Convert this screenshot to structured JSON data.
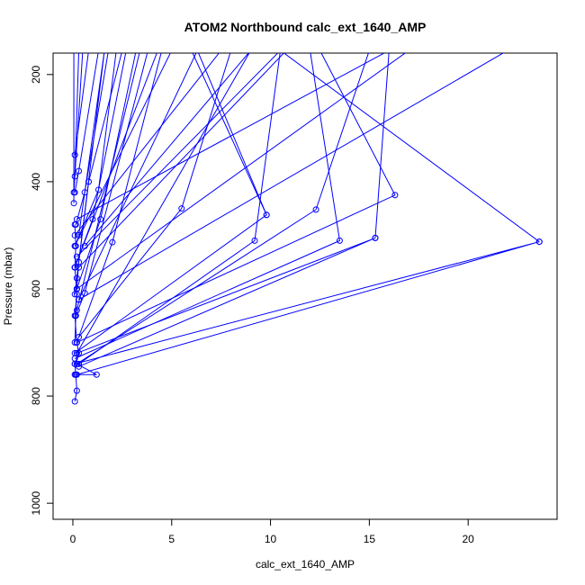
{
  "chart_data": {
    "type": "line",
    "title": "ATOM2 Northbound calc_ext_1640_AMP",
    "xlabel": "calc_ext_1640_AMP",
    "ylabel": "Pressure (mbar)",
    "xlim": [
      -1,
      24.5
    ],
    "ylim": [
      1030,
      160
    ],
    "y_reversed": true,
    "x_ticks": [
      0,
      5,
      10,
      15,
      20
    ],
    "y_ticks": [
      200,
      400,
      600,
      800,
      1000
    ],
    "grid": false,
    "series_color": "#0000ff",
    "series": [
      {
        "x": [
          0.1,
          0.2,
          0.15,
          0.1,
          0.3,
          0.2,
          0.1,
          0.2,
          0.1,
          0.15,
          0.1
        ],
        "y": [
          810,
          790,
          760,
          740,
          720,
          700,
          650,
          610,
          560,
          520,
          480
        ]
      },
      {
        "x": [
          0.1,
          0.15,
          0.2,
          0.3
        ],
        "y": [
          700,
          650,
          600,
          550
        ]
      },
      {
        "x": [
          0.2,
          23.6,
          0.1
        ],
        "y": [
          760,
          512,
          740
        ]
      },
      {
        "x": [
          0.3,
          15.3,
          0.2
        ],
        "y": [
          745,
          505,
          720
        ]
      },
      {
        "x": [
          0.1,
          13.5,
          12.0
        ],
        "y": [
          730,
          510,
          155
        ]
      },
      {
        "x": [
          0.2,
          16.3,
          12.5
        ],
        "y": [
          700,
          425,
          155
        ]
      },
      {
        "x": [
          0.3,
          9.2,
          10.5
        ],
        "y": [
          740,
          510,
          155
        ]
      },
      {
        "x": [
          0.1,
          9.8,
          6.0
        ],
        "y": [
          720,
          462,
          155
        ]
      },
      {
        "x": [
          0.2,
          12.3,
          15.0
        ],
        "y": [
          740,
          452,
          155
        ]
      },
      {
        "x": [
          0.3,
          5.5,
          8.0
        ],
        "y": [
          690,
          450,
          155
        ]
      },
      {
        "x": [
          0.2,
          2.0,
          4.5
        ],
        "y": [
          700,
          513,
          155
        ]
      },
      {
        "x": [
          0.1,
          1.2,
          0.2
        ],
        "y": [
          760,
          760,
          740
        ]
      },
      {
        "x": [
          0.15,
          0.6,
          3.8
        ],
        "y": [
          650,
          608,
          155
        ]
      },
      {
        "x": [
          0.2,
          1.4,
          3.2
        ],
        "y": [
          600,
          470,
          155
        ]
      },
      {
        "x": [
          0.1,
          1.0,
          2.7
        ],
        "y": [
          560,
          470,
          155
        ]
      },
      {
        "x": [
          0.2,
          0.8,
          2.5
        ],
        "y": [
          580,
          400,
          155
        ]
      },
      {
        "x": [
          0.1,
          1.3,
          2.2
        ],
        "y": [
          520,
          415,
          155
        ]
      },
      {
        "x": [
          0.15,
          0.6,
          1.8
        ],
        "y": [
          480,
          420,
          155
        ]
      },
      {
        "x": [
          0.1,
          0.3,
          1.3
        ],
        "y": [
          420,
          380,
          155
        ]
      },
      {
        "x": [
          0.1,
          0.8
        ],
        "y": [
          350,
          155
        ]
      },
      {
        "x": [
          0.05,
          0.5
        ],
        "y": [
          420,
          155
        ]
      },
      {
        "x": [
          0.1,
          0.3
        ],
        "y": [
          390,
          155
        ]
      },
      {
        "x": [
          0.05,
          0.05
        ],
        "y": [
          440,
          155
        ]
      },
      {
        "x": [
          0.3,
          22.0
        ],
        "y": [
          620,
          155
        ]
      },
      {
        "x": [
          0.2,
          17.0
        ],
        "y": [
          600,
          155
        ]
      },
      {
        "x": [
          0.3,
          10.8
        ],
        "y": [
          560,
          155
        ]
      },
      {
        "x": [
          0.2,
          10.5,
          23.6
        ],
        "y": [
          540,
          155,
          512
        ]
      },
      {
        "x": [
          0.1,
          7.5
        ],
        "y": [
          500,
          155
        ]
      },
      {
        "x": [
          0.2,
          16.0,
          15.3
        ],
        "y": [
          470,
          155,
          505
        ]
      },
      {
        "x": [
          0.1,
          4.3
        ],
        "y": [
          560,
          155
        ]
      },
      {
        "x": [
          0.2,
          3.4
        ],
        "y": [
          640,
          155
        ]
      },
      {
        "x": [
          0.1,
          5.0
        ],
        "y": [
          520,
          155
        ]
      },
      {
        "x": [
          0.3,
          6.3,
          9.8
        ],
        "y": [
          620,
          155,
          462
        ]
      },
      {
        "x": [
          0.2,
          9.0,
          0.6
        ],
        "y": [
          720,
          155,
          520
        ]
      },
      {
        "x": [
          0.1,
          1.6,
          0.3
        ],
        "y": [
          610,
          155,
          500
        ]
      }
    ]
  }
}
